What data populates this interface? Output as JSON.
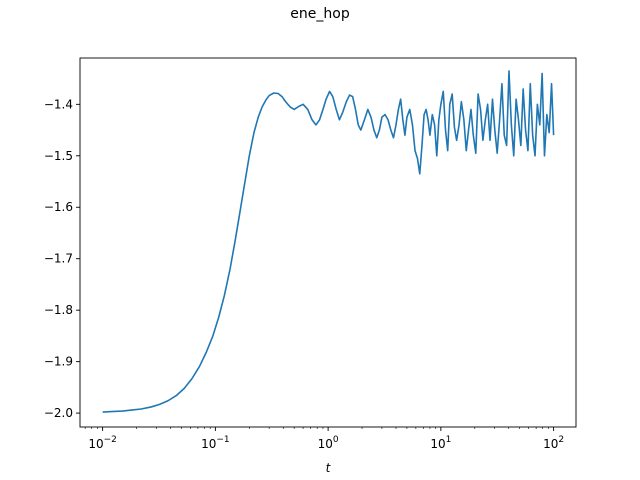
{
  "figure": {
    "suptitle": "ene_hop"
  },
  "chart_data": {
    "type": "line",
    "title": "ene_hop",
    "xlabel": "t",
    "ylabel": "",
    "xscale": "log",
    "xlim": [
      0.0063,
      158
    ],
    "ylim": [
      -2.027,
      -1.31
    ],
    "grid": false,
    "xticks": [
      {
        "value": 0.01,
        "base": "10",
        "exp": "−2"
      },
      {
        "value": 0.1,
        "base": "10",
        "exp": "−1"
      },
      {
        "value": 1,
        "base": "10",
        "exp": "0"
      },
      {
        "value": 10,
        "base": "10",
        "exp": "1"
      },
      {
        "value": 100,
        "base": "10",
        "exp": "2"
      }
    ],
    "yticks": [
      {
        "value": -2.0,
        "label": "−2.0"
      },
      {
        "value": -1.9,
        "label": "−1.9"
      },
      {
        "value": -1.8,
        "label": "−1.8"
      },
      {
        "value": -1.7,
        "label": "−1.7"
      },
      {
        "value": -1.6,
        "label": "−1.6"
      },
      {
        "value": -1.5,
        "label": "−1.5"
      },
      {
        "value": -1.4,
        "label": "−1.4"
      }
    ],
    "series": [
      {
        "color": "#1f77b4",
        "x": [
          0.01,
          0.012,
          0.015,
          0.018,
          0.022,
          0.027,
          0.032,
          0.038,
          0.045,
          0.053,
          0.062,
          0.072,
          0.083,
          0.095,
          0.107,
          0.12,
          0.135,
          0.15,
          0.165,
          0.18,
          0.2,
          0.22,
          0.24,
          0.26,
          0.28,
          0.3,
          0.33,
          0.36,
          0.39,
          0.42,
          0.46,
          0.5,
          0.55,
          0.6,
          0.66,
          0.72,
          0.78,
          0.84,
          0.9,
          0.96,
          1.03,
          1.1,
          1.18,
          1.26,
          1.35,
          1.45,
          1.55,
          1.65,
          1.75,
          1.85,
          1.95,
          2.1,
          2.25,
          2.4,
          2.55,
          2.7,
          2.85,
          3.0,
          3.2,
          3.4,
          3.6,
          3.8,
          4.0,
          4.2,
          4.4,
          4.6,
          4.8,
          5.0,
          5.3,
          5.6,
          5.9,
          6.2,
          6.5,
          6.8,
          7.1,
          7.4,
          7.7,
          8.0,
          8.4,
          8.8,
          9.2,
          9.6,
          10.0,
          10.5,
          11.0,
          11.5,
          12.0,
          12.6,
          13.2,
          13.8,
          14.5,
          15.2,
          16.0,
          16.8,
          17.6,
          18.5,
          19.4,
          20.4,
          21.4,
          22.5,
          23.6,
          24.8,
          26.0,
          27.3,
          28.7,
          30.1,
          31.6,
          33.2,
          34.8,
          36.5,
          38.3,
          40.2,
          42.2,
          44.3,
          46.5,
          48.8,
          51.2,
          53.7,
          56.4,
          59.2,
          62.1,
          65.2,
          68.4,
          71.8,
          75.4,
          79.1,
          83.0,
          87.1,
          91.4,
          95.9,
          100.0
        ],
        "y": [
          -1.998,
          -1.997,
          -1.996,
          -1.994,
          -1.992,
          -1.988,
          -1.983,
          -1.976,
          -1.966,
          -1.952,
          -1.933,
          -1.91,
          -1.882,
          -1.85,
          -1.814,
          -1.772,
          -1.72,
          -1.664,
          -1.61,
          -1.56,
          -1.5,
          -1.455,
          -1.425,
          -1.405,
          -1.392,
          -1.383,
          -1.378,
          -1.379,
          -1.385,
          -1.395,
          -1.405,
          -1.41,
          -1.404,
          -1.4,
          -1.41,
          -1.43,
          -1.44,
          -1.43,
          -1.41,
          -1.39,
          -1.375,
          -1.385,
          -1.41,
          -1.43,
          -1.415,
          -1.395,
          -1.382,
          -1.385,
          -1.41,
          -1.44,
          -1.45,
          -1.43,
          -1.41,
          -1.425,
          -1.45,
          -1.465,
          -1.45,
          -1.425,
          -1.42,
          -1.43,
          -1.45,
          -1.465,
          -1.44,
          -1.41,
          -1.39,
          -1.43,
          -1.46,
          -1.425,
          -1.41,
          -1.44,
          -1.49,
          -1.505,
          -1.535,
          -1.48,
          -1.42,
          -1.41,
          -1.43,
          -1.46,
          -1.42,
          -1.44,
          -1.5,
          -1.43,
          -1.4,
          -1.375,
          -1.45,
          -1.49,
          -1.4,
          -1.38,
          -1.445,
          -1.47,
          -1.44,
          -1.395,
          -1.43,
          -1.49,
          -1.45,
          -1.41,
          -1.46,
          -1.495,
          -1.38,
          -1.41,
          -1.47,
          -1.43,
          -1.4,
          -1.47,
          -1.39,
          -1.45,
          -1.495,
          -1.43,
          -1.36,
          -1.46,
          -1.48,
          -1.335,
          -1.44,
          -1.5,
          -1.39,
          -1.43,
          -1.48,
          -1.37,
          -1.45,
          -1.49,
          -1.36,
          -1.46,
          -1.5,
          -1.4,
          -1.44,
          -1.34,
          -1.5,
          -1.42,
          -1.455,
          -1.36,
          -1.46
        ]
      }
    ]
  }
}
